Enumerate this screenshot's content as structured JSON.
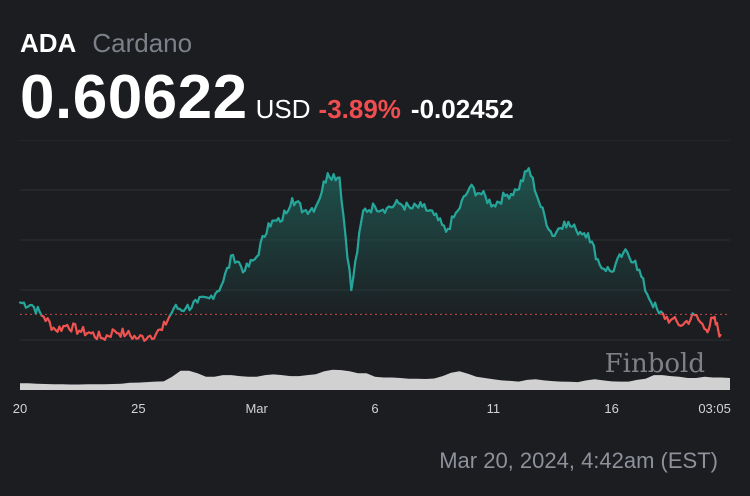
{
  "header": {
    "symbol": "ADA",
    "name": "Cardano",
    "price": "0.60622",
    "currency": "USD",
    "change_pct": "-3.89%",
    "change_abs": "-0.02452"
  },
  "timestamp": "Mar 20, 2024, 4:42am (EST)",
  "watermark": "Finbold",
  "colors": {
    "up": "#26a69a",
    "down": "#ef5350",
    "area": "#1f5c55",
    "reference": "#ef5350",
    "volume": "#e6e6e6",
    "grid": "#2c2e33",
    "background": "#1c1d21"
  },
  "chart_data": {
    "type": "line",
    "x_tick_labels": [
      "20",
      "25",
      "Mar",
      "6",
      "11",
      "16",
      "03:05"
    ],
    "x_tick_days": [
      0,
      5,
      10,
      15,
      20,
      25,
      29.35
    ],
    "ylim": [
      0.54,
      0.84
    ],
    "reference_price": 0.6307,
    "grid": true,
    "series": [
      {
        "x": [
          0,
          0.5,
          1,
          1.5,
          2,
          2.5,
          3,
          3.5,
          4,
          4.5,
          5,
          5.5,
          6,
          6.5,
          7,
          7.5,
          8,
          8.5,
          9,
          9.5,
          10,
          10.5,
          11,
          11.5,
          12,
          12.5,
          13,
          13.5,
          14,
          14.5,
          15,
          15.5,
          16,
          16.5,
          17,
          17.5,
          18,
          18.5,
          19,
          19.5,
          20,
          20.5,
          21,
          21.5,
          22,
          22.5,
          23,
          23.5,
          24,
          24.5,
          25,
          25.5,
          26,
          26.5,
          27,
          27.5,
          28,
          28.5,
          29,
          29.3,
          29.6
        ],
        "values": [
          0.645,
          0.642,
          0.628,
          0.612,
          0.618,
          0.611,
          0.608,
          0.602,
          0.611,
          0.607,
          0.602,
          0.605,
          0.612,
          0.638,
          0.638,
          0.645,
          0.65,
          0.665,
          0.702,
          0.683,
          0.7,
          0.74,
          0.742,
          0.77,
          0.755,
          0.76,
          0.8,
          0.795,
          0.66,
          0.755,
          0.76,
          0.758,
          0.764,
          0.758,
          0.76,
          0.75,
          0.73,
          0.755,
          0.783,
          0.775,
          0.762,
          0.773,
          0.78,
          0.806,
          0.76,
          0.725,
          0.742,
          0.732,
          0.728,
          0.69,
          0.682,
          0.705,
          0.695,
          0.655,
          0.632,
          0.624,
          0.618,
          0.63,
          0.612,
          0.626,
          0.606
        ]
      }
    ],
    "volume_relative": [
      0.28,
      0.28,
      0.26,
      0.25,
      0.24,
      0.24,
      0.23,
      0.23,
      0.24,
      0.24,
      0.24,
      0.25,
      0.26,
      0.3,
      0.31,
      0.33,
      0.35,
      0.36,
      0.55,
      0.8,
      0.8,
      0.7,
      0.55,
      0.55,
      0.62,
      0.62,
      0.58,
      0.55,
      0.55,
      0.62,
      0.65,
      0.62,
      0.58,
      0.58,
      0.62,
      0.66,
      0.78,
      0.84,
      0.83,
      0.78,
      0.7,
      0.7,
      0.55,
      0.52,
      0.52,
      0.5,
      0.47,
      0.47,
      0.46,
      0.48,
      0.58,
      0.72,
      0.78,
      0.68,
      0.55,
      0.5,
      0.45,
      0.4,
      0.38,
      0.35,
      0.42,
      0.45,
      0.4,
      0.37,
      0.35,
      0.34,
      0.33,
      0.4,
      0.45,
      0.4,
      0.36,
      0.35,
      0.35,
      0.42,
      0.47,
      0.62,
      0.62,
      0.58,
      0.55,
      0.5,
      0.5,
      0.55,
      0.52,
      0.52,
      0.5
    ]
  }
}
